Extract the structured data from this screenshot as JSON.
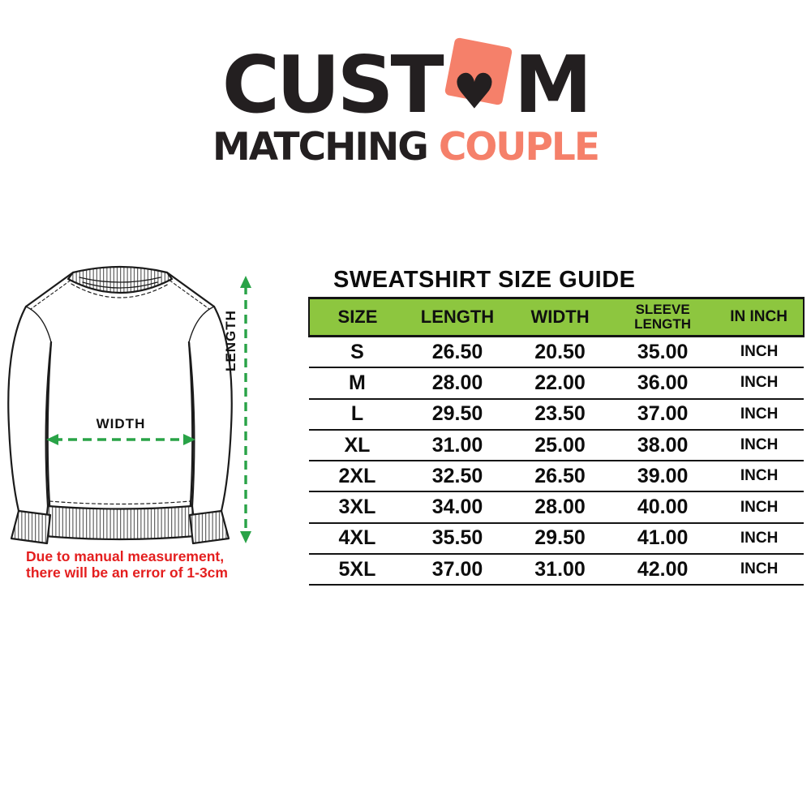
{
  "logo": {
    "word_start": "CUST",
    "word_end": "M",
    "heart_glyph": "♥",
    "subtitle_dark": "MATCHING",
    "subtitle_accent": "COUPLE",
    "accent_color": "#F5806A",
    "dark_color": "#231F20"
  },
  "diagram": {
    "width_label": "WIDTH",
    "length_label": "LENGTH",
    "arrow_color": "#29A347",
    "note_line1": "Due to manual measurement,",
    "note_line2": "there will be an error of 1-3cm",
    "note_color": "#E41E1E"
  },
  "size_guide": {
    "type": "table",
    "title": "SWEATSHIRT SIZE GUIDE",
    "header_bg": "#8DC63F",
    "columns": [
      "SIZE",
      "LENGTH",
      "WIDTH",
      "SLEEVE LENGTH",
      "IN INCH"
    ],
    "rows": [
      {
        "size": "S",
        "length": "26.50",
        "width": "20.50",
        "sleeve": "35.00",
        "unit": "INCH"
      },
      {
        "size": "M",
        "length": "28.00",
        "width": "22.00",
        "sleeve": "36.00",
        "unit": "INCH"
      },
      {
        "size": "L",
        "length": "29.50",
        "width": "23.50",
        "sleeve": "37.00",
        "unit": "INCH"
      },
      {
        "size": "XL",
        "length": "31.00",
        "width": "25.00",
        "sleeve": "38.00",
        "unit": "INCH"
      },
      {
        "size": "2XL",
        "length": "32.50",
        "width": "26.50",
        "sleeve": "39.00",
        "unit": "INCH"
      },
      {
        "size": "3XL",
        "length": "34.00",
        "width": "28.00",
        "sleeve": "40.00",
        "unit": "INCH"
      },
      {
        "size": "4XL",
        "length": "35.50",
        "width": "29.50",
        "sleeve": "41.00",
        "unit": "INCH"
      },
      {
        "size": "5XL",
        "length": "37.00",
        "width": "31.00",
        "sleeve": "42.00",
        "unit": "INCH"
      }
    ]
  }
}
